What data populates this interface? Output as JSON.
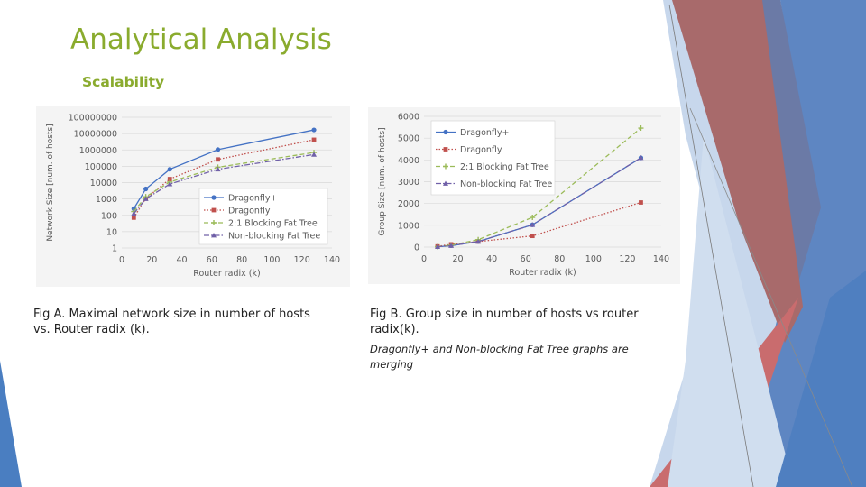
{
  "slide": {
    "title": "Analytical Analysis",
    "subtitle": "Scalability",
    "caption_a": "Fig A. Maximal network size in number of hosts vs. Router radix (k).",
    "caption_b": "Fig B. Group size in number of hosts vs router radix(k).",
    "note_b": "Dragonfly+ and Non-blocking Fat Tree graphs are merging"
  },
  "colors": {
    "title": "#8aab2e",
    "blue": "#4472c4",
    "red": "#c0504d",
    "green": "#9bbb59",
    "purple": "#7060a8"
  },
  "chart_data": [
    {
      "type": "line",
      "scale": "log",
      "xlabel": "Router radix (k)",
      "ylabel": "Network Size [num. of hosts]",
      "xlim": [
        0,
        140
      ],
      "ylim": [
        1,
        100000000
      ],
      "xticks": [
        "0",
        "20",
        "40",
        "60",
        "80",
        "100",
        "120",
        "140"
      ],
      "yticks": [
        "1",
        "10",
        "100",
        "1000",
        "10000",
        "100000",
        "1000000",
        "10000000",
        "100000000"
      ],
      "legend": "bottom-right",
      "x": [
        8,
        16,
        32,
        64,
        128
      ],
      "series": [
        {
          "name": "Dragonfly+",
          "color": "#4472c4",
          "dash": "solid",
          "marker": "circle",
          "values": [
            256,
            4096,
            65536,
            1048576,
            16777216
          ]
        },
        {
          "name": "Dragonfly",
          "color": "#c0504d",
          "dash": "dot",
          "marker": "square",
          "values": [
            72,
            1056,
            16512,
            262656,
            4196352
          ]
        },
        {
          "name": "2:1 Blocking Fat Tree",
          "color": "#9bbb59",
          "dash": "dash",
          "marker": "plus",
          "values": [
            171,
            1365,
            10923,
            87381,
            699051
          ]
        },
        {
          "name": "Non-blocking Fat Tree",
          "color": "#7060a8",
          "dash": "dashdot",
          "marker": "triangle",
          "values": [
            128,
            1024,
            8192,
            65536,
            524288
          ]
        }
      ]
    },
    {
      "type": "line",
      "scale": "linear",
      "xlabel": "Router radix (k)",
      "ylabel": "Group Size [num. of hosts]",
      "xlim": [
        0,
        140
      ],
      "ylim": [
        0,
        6000
      ],
      "xticks": [
        "0",
        "20",
        "40",
        "60",
        "80",
        "100",
        "120",
        "140"
      ],
      "yticks": [
        "0",
        "1000",
        "2000",
        "3000",
        "4000",
        "5000",
        "6000"
      ],
      "legend": "top-left",
      "x": [
        8,
        16,
        32,
        64,
        128
      ],
      "series": [
        {
          "name": "Dragonfly+",
          "color": "#4472c4",
          "dash": "solid",
          "marker": "circle",
          "values": [
            16,
            64,
            256,
            1024,
            4096
          ]
        },
        {
          "name": "Dragonfly",
          "color": "#c0504d",
          "dash": "dot",
          "marker": "square",
          "values": [
            32,
            128,
            256,
            512,
            2048
          ]
        },
        {
          "name": "2:1 Blocking Fat Tree",
          "color": "#9bbb59",
          "dash": "dash",
          "marker": "plus",
          "values": [
            21,
            85,
            341,
            1365,
            5461
          ]
        },
        {
          "name": "Non-blocking Fat Tree",
          "color": "#7060a8",
          "dash": "dashdot",
          "marker": "triangle",
          "values": [
            16,
            64,
            256,
            1024,
            4096
          ]
        }
      ]
    }
  ]
}
